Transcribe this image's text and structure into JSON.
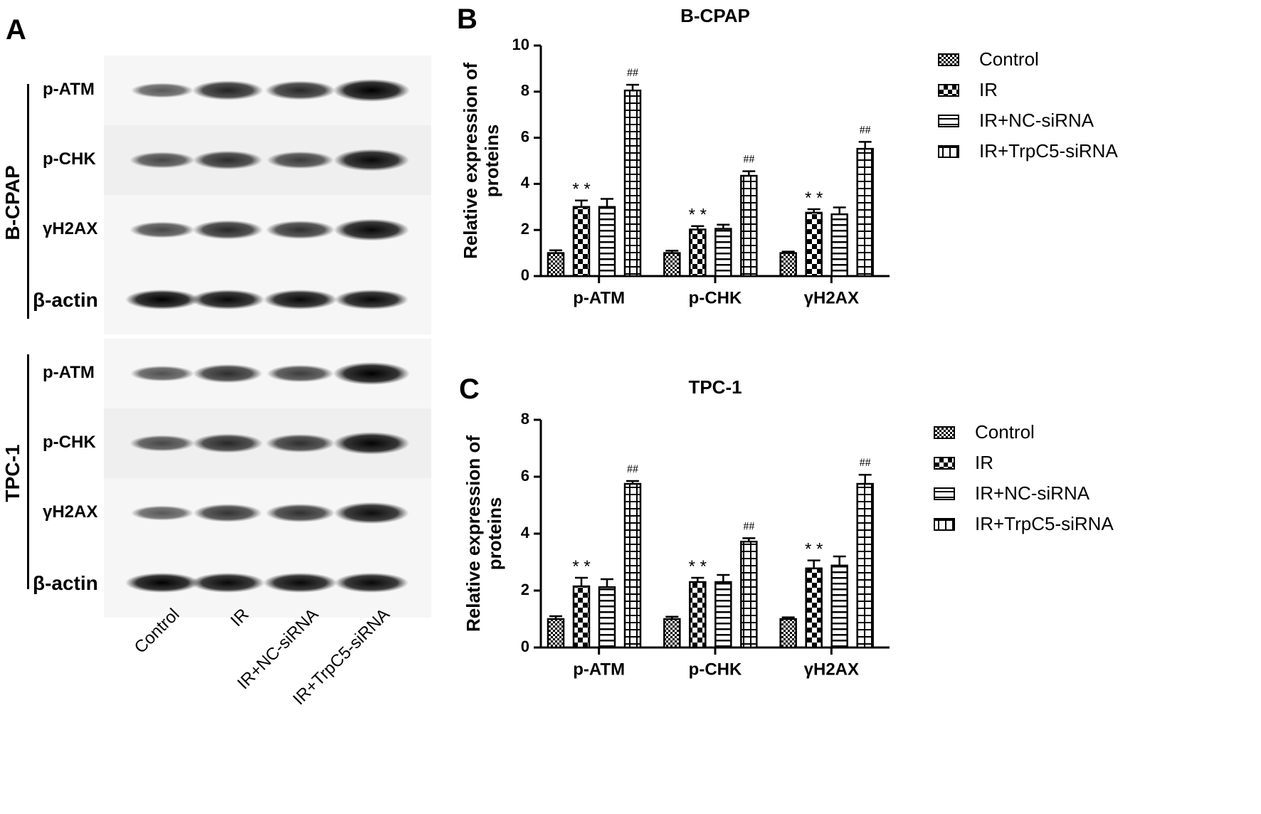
{
  "panels": {
    "a": "A",
    "b": "B",
    "c": "C"
  },
  "blot": {
    "groups": [
      {
        "name": "B-CPAP",
        "rows": [
          {
            "label": "p-ATM",
            "intensity": [
              0.45,
              0.78,
              0.75,
              1.0
            ]
          },
          {
            "label": "p-CHK",
            "intensity": [
              0.55,
              0.72,
              0.62,
              0.95
            ]
          },
          {
            "label": "γH2AX",
            "intensity": [
              0.55,
              0.75,
              0.7,
              0.95
            ]
          },
          {
            "label": "β-actin",
            "intensity": [
              1.0,
              0.95,
              0.95,
              0.95
            ]
          }
        ]
      },
      {
        "name": "TPC-1",
        "rows": [
          {
            "label": "p-ATM",
            "intensity": [
              0.5,
              0.72,
              0.62,
              1.0
            ]
          },
          {
            "label": "p-CHK",
            "intensity": [
              0.55,
              0.75,
              0.7,
              0.98
            ]
          },
          {
            "label": "γH2AX",
            "intensity": [
              0.45,
              0.68,
              0.7,
              0.92
            ]
          },
          {
            "label": "β-actin",
            "intensity": [
              1.0,
              0.95,
              0.95,
              0.95
            ]
          }
        ]
      }
    ],
    "lanes": [
      "Control",
      "IR",
      "IR+NC-siRNA",
      "IR+TrpC5-siRNA"
    ]
  },
  "legend": [
    "Control",
    "IR",
    "IR+NC-siRNA",
    "IR+TrpC5-siRNA"
  ],
  "chart_data": [
    {
      "type": "bar",
      "title": "B-CPAP",
      "ylabel": "Relative expression of proteins",
      "ylim": [
        0,
        10
      ],
      "yticks": [
        0,
        2,
        4,
        6,
        8,
        10
      ],
      "categories": [
        "p-ATM",
        "p-CHK",
        "γH2AX"
      ],
      "series": [
        {
          "name": "Control",
          "values": [
            1.0,
            1.0,
            1.0
          ],
          "errors": [
            0.12,
            0.1,
            0.06
          ],
          "marks": [
            "",
            "",
            ""
          ]
        },
        {
          "name": "IR",
          "values": [
            3.0,
            2.02,
            2.75
          ],
          "errors": [
            0.28,
            0.15,
            0.15
          ],
          "marks": [
            "**",
            "**",
            "**"
          ]
        },
        {
          "name": "IR+NC-siRNA",
          "values": [
            3.0,
            2.05,
            2.68
          ],
          "errors": [
            0.35,
            0.18,
            0.3
          ],
          "marks": [
            "",
            "",
            ""
          ]
        },
        {
          "name": "IR+TrpC5-siRNA",
          "values": [
            8.05,
            4.35,
            5.52
          ],
          "errors": [
            0.25,
            0.2,
            0.3
          ],
          "marks": [
            "##",
            "##",
            "##"
          ]
        }
      ]
    },
    {
      "type": "bar",
      "title": "TPC-1",
      "ylabel": "Relative expression of proteins",
      "ylim": [
        0,
        8
      ],
      "yticks": [
        0,
        2,
        4,
        6,
        8
      ],
      "categories": [
        "p-ATM",
        "p-CHK",
        "γH2AX"
      ],
      "series": [
        {
          "name": "Control",
          "values": [
            1.0,
            1.0,
            1.0
          ],
          "errors": [
            0.1,
            0.08,
            0.06
          ],
          "marks": [
            "",
            "",
            ""
          ]
        },
        {
          "name": "IR",
          "values": [
            2.15,
            2.3,
            2.78
          ],
          "errors": [
            0.3,
            0.15,
            0.28
          ],
          "marks": [
            "**",
            "**",
            "**"
          ]
        },
        {
          "name": "IR+NC-siRNA",
          "values": [
            2.12,
            2.3,
            2.88
          ],
          "errors": [
            0.28,
            0.25,
            0.32
          ],
          "marks": [
            "",
            "",
            ""
          ]
        },
        {
          "name": "IR+TrpC5-siRNA",
          "values": [
            5.75,
            3.72,
            5.75
          ],
          "errors": [
            0.1,
            0.12,
            0.32
          ],
          "marks": [
            "##",
            "##",
            "##"
          ]
        }
      ]
    }
  ]
}
